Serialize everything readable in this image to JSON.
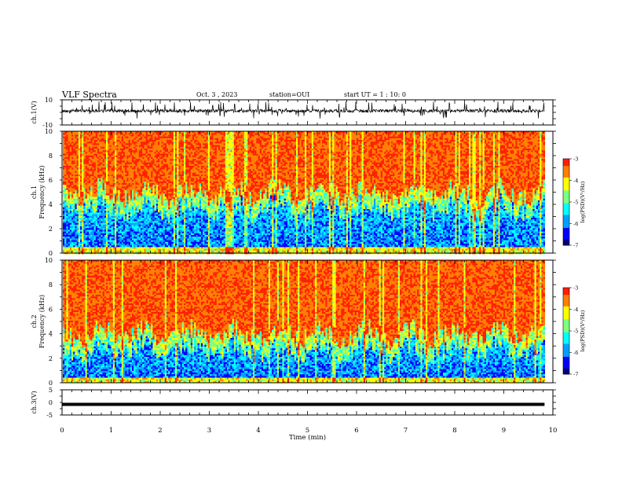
{
  "header": {
    "title": "VLF Spectra",
    "date": "Oct. 3 , 2023",
    "station": "station=OUI",
    "start": "start UT = 1 : 10: 0"
  },
  "chart_data": [
    {
      "type": "line",
      "panel": "ch1-waveform",
      "ylabel": "ch.1(V)",
      "ylim": [
        -10,
        10
      ],
      "yticks": [
        "10",
        "-10"
      ],
      "xlim": [
        0,
        10
      ],
      "data_end": 9.83,
      "baseline": 1.2,
      "color": "#000000"
    },
    {
      "type": "heatmap",
      "panel": "ch1-spectrogram",
      "ylabel_top": "ch.1",
      "ylabel": "Frequency (kHz)",
      "ylim": [
        0,
        10
      ],
      "yticks": [
        "0",
        "2",
        "4",
        "6",
        "8",
        "10"
      ],
      "xlim": [
        0,
        10
      ],
      "data_end": 9.83,
      "band_edge_khz": 5.0,
      "colorbar": {
        "label": "log(PSD)(V²/Hz)",
        "range": [
          -7,
          -3
        ],
        "ticks": [
          "-3",
          "-4",
          "-5",
          "-6",
          "-7"
        ]
      }
    },
    {
      "type": "heatmap",
      "panel": "ch2-spectrogram",
      "ylabel_top": "ch.2",
      "ylabel": "Frequency (kHz)",
      "ylim": [
        0,
        10
      ],
      "yticks": [
        "0",
        "2",
        "4",
        "6",
        "8",
        "10"
      ],
      "xlim": [
        0,
        10
      ],
      "data_end": 9.83,
      "band_edge_khz": 4.0,
      "colorbar": {
        "label": "log(PSD)(V²/Hz)",
        "range": [
          -7,
          -3
        ],
        "ticks": [
          "-3",
          "-4",
          "-5",
          "-6",
          "-7"
        ]
      }
    },
    {
      "type": "line",
      "panel": "ch3-waveform",
      "ylabel": "ch.3(V)",
      "ylim": [
        -5,
        5
      ],
      "yticks": [
        "5",
        "0",
        "-5"
      ],
      "xlim": [
        0,
        10
      ],
      "data_end": 9.83,
      "x": [
        0,
        9.83
      ],
      "y": [
        -0.8,
        -0.8
      ],
      "xlabel": "Time (min)",
      "xticks": [
        "0",
        "1",
        "2",
        "3",
        "4",
        "5",
        "6",
        "7",
        "8",
        "9",
        "10"
      ],
      "color": "#000000"
    }
  ],
  "colormap": [
    "#00007f",
    "#0000ff",
    "#00a0ff",
    "#00ffff",
    "#7fff7f",
    "#ffff00",
    "#ff7f00",
    "#ff2000"
  ]
}
